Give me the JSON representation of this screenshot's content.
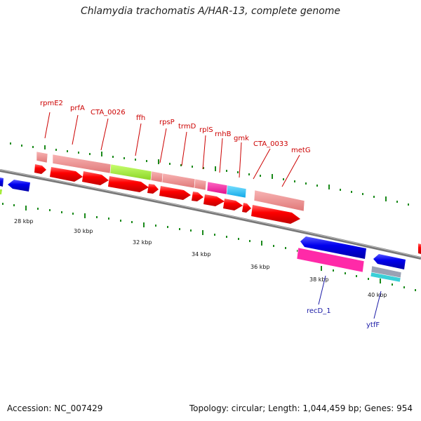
{
  "title": "Chlamydia trachomatis A/HAR-13, complete genome",
  "footer": {
    "accession": "Accession: NC_007429",
    "summary": "Topology: circular; Length: 1,044,459 bp; Genes: 954"
  },
  "colors": {
    "backbone": "#888888",
    "cds_forward": "#ff0000",
    "cds_reverse": "#0000ee",
    "gene_salmon": "#f08c8c",
    "gene_green": "#a6ec3c",
    "gene_magenta": "#ff2aa8",
    "gene_cyan": "#2ac8ff",
    "gene_pink": "#ff3aa8",
    "gene_teal": "#3ad0d8",
    "gene_grey": "#9aa2b4",
    "tick": "#1b8a1b",
    "label_red": "#cc0000",
    "label_blue": "#1a1aa6"
  },
  "kbp_labels": [
    "28 kbp",
    "30 kbp",
    "32 kbp",
    "34 kbp",
    "36 kbp",
    "38 kbp",
    "40 kbp"
  ],
  "gene_labels_top": [
    "rpmE2",
    "prfA",
    "CTA_0026",
    "ffh",
    "rpsP",
    "trmD",
    "rplS",
    "rnhB",
    "gmk",
    "CTA_0033",
    "metG"
  ],
  "gene_labels_bottom": [
    "recD_1",
    "ytfF"
  ]
}
